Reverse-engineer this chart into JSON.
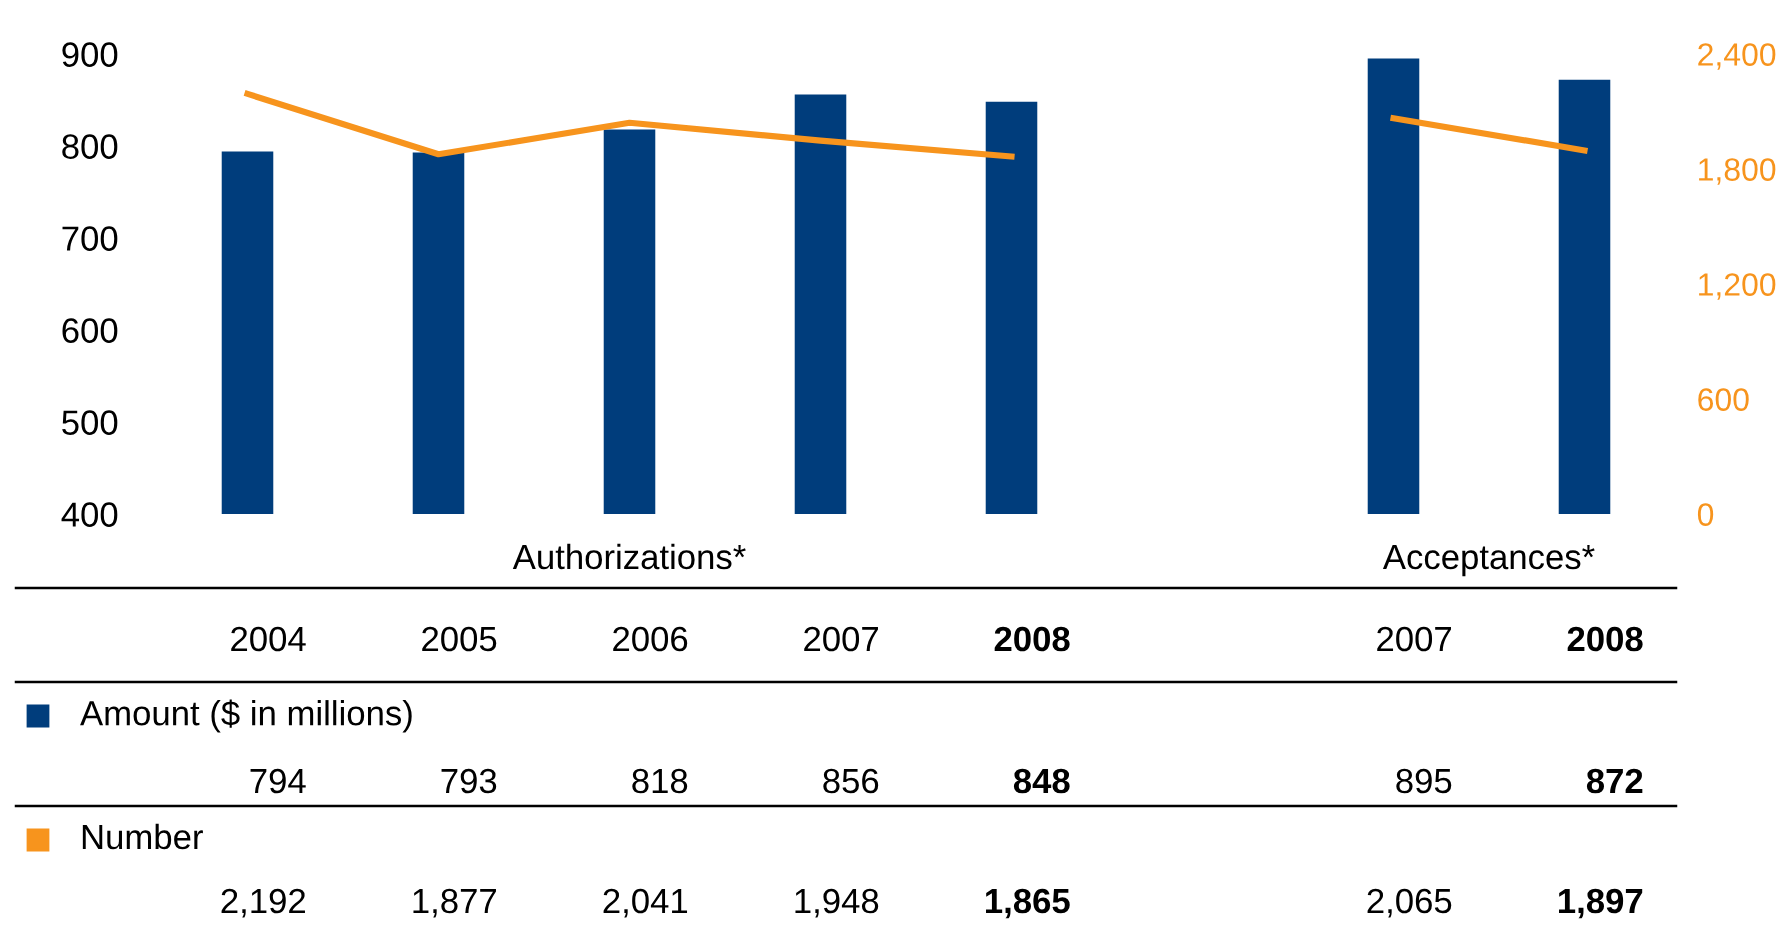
{
  "chart_data": {
    "type": "bar",
    "categories": [
      "2004",
      "2005",
      "2006",
      "2007",
      "2008",
      null,
      "2007",
      "2008"
    ],
    "series": [
      {
        "name": "Amount ($ in millions)",
        "color": "#003d7c",
        "values": [
          794,
          793,
          818,
          856,
          848,
          null,
          895,
          872
        ],
        "value_labels": [
          "794",
          "793",
          "818",
          "856",
          "848",
          null,
          "895",
          "872"
        ]
      },
      {
        "name": "Number",
        "type": "line",
        "axis": "y2",
        "color": "#f7941d",
        "values": [
          2192,
          1877,
          2041,
          1948,
          1865,
          null,
          2065,
          1897
        ],
        "value_labels": [
          "2,192",
          "1,877",
          "2,041",
          "1,948",
          "1,865",
          null,
          "2,065",
          "1,897"
        ]
      }
    ],
    "ylim": [
      400,
      900
    ],
    "yticks": [
      400,
      500,
      600,
      700,
      800,
      900
    ],
    "y2lim": [
      0,
      2400
    ],
    "y2ticks": [
      0,
      {
        "value": 600,
        "label": "600"
      },
      {
        "value": 1200,
        "label": "1,200"
      },
      {
        "value": 1800,
        "label": "1,800"
      },
      {
        "value": 2400,
        "label": "2,400"
      }
    ],
    "annotations": [
      "Authorizations*",
      "Acceptances*"
    ],
    "grid": false,
    "legend": "bottom left",
    "line_style": "solid",
    "marker": "none"
  }
}
